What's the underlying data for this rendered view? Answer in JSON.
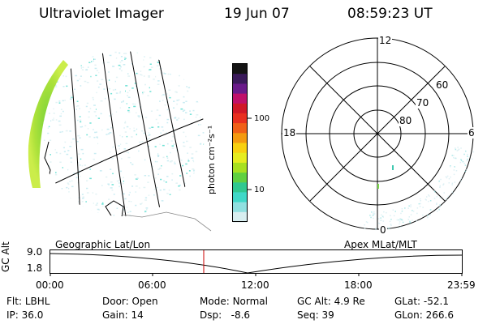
{
  "header": {
    "instrument": "Ultraviolet Imager",
    "date": "19 Jun 07",
    "time": "08:59:23 UT"
  },
  "colorbar": {
    "label": "photon cm⁻²s⁻¹",
    "ticks": [
      "100",
      "10"
    ],
    "colors": [
      "#141414",
      "#3a1a5a",
      "#6a1a8a",
      "#c0106a",
      "#d01828",
      "#e83020",
      "#f06018",
      "#f49a10",
      "#f8d010",
      "#e6ec20",
      "#a8e020",
      "#60d040",
      "#30c890",
      "#40d8c8",
      "#90e0e0",
      "#d8eef0"
    ]
  },
  "polar": {
    "mlt_labels": {
      "top": "12",
      "left": "18",
      "right": "6",
      "bottom": "0"
    },
    "lat_labels": [
      "60",
      "70",
      "80"
    ]
  },
  "timeline": {
    "y_axis_label": "GC Alt",
    "y_ticks": [
      "9.0",
      "1.8"
    ],
    "left_caption": "Geographic Lat/Lon",
    "right_caption": "Apex MLat/MLT",
    "x_ticks": [
      "00:00",
      "06:00",
      "12:00",
      "18:00",
      "23:59"
    ],
    "marker_color": "#cc0000",
    "marker_time": "08:59"
  },
  "info": {
    "row1": [
      {
        "label": "Flt:",
        "value": "LBHL"
      },
      {
        "label": "Door:",
        "value": "Open"
      },
      {
        "label": "Mode:",
        "value": "Normal"
      },
      {
        "label": "GC Alt:",
        "value": "4.9 Re"
      },
      {
        "label": "GLat:",
        "value": "-52.1"
      }
    ],
    "row2": [
      {
        "label": "IP:",
        "value": "36.0"
      },
      {
        "label": "Gain:",
        "value": "14"
      },
      {
        "label": "Dsp:",
        "value": "-8.6"
      },
      {
        "label": "Seq:",
        "value": "39"
      },
      {
        "label": "GLon:",
        "value": "266.6"
      }
    ]
  }
}
